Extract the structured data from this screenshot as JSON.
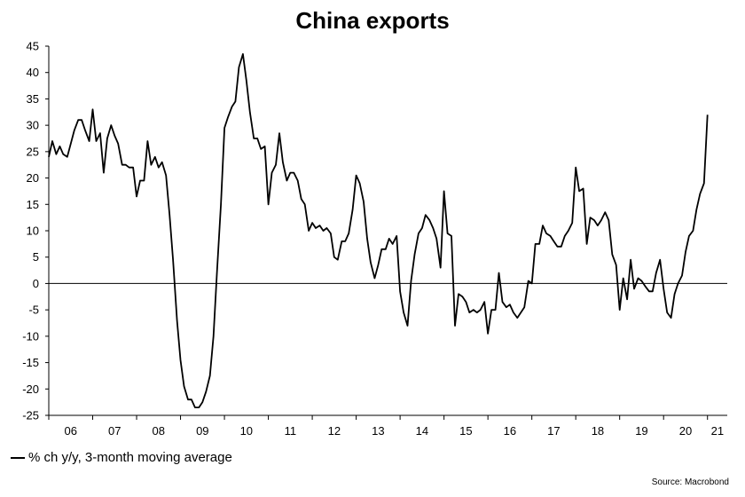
{
  "chart_data": {
    "type": "line",
    "title": "China exports",
    "xlabel": "",
    "ylabel": "",
    "ylim": [
      -25,
      45
    ],
    "yticks": [
      45,
      40,
      35,
      30,
      25,
      20,
      15,
      10,
      5,
      0,
      -5,
      -10,
      -15,
      -20,
      -25
    ],
    "xlim": [
      2006.0,
      2021.45
    ],
    "xtick_labels": [
      "06",
      "07",
      "08",
      "09",
      "10",
      "11",
      "12",
      "13",
      "14",
      "15",
      "16",
      "17",
      "18",
      "19",
      "20",
      "21"
    ],
    "grid": false,
    "legend_position": "bottom-left",
    "series": [
      {
        "name": "% ch y/y, 3-month moving average",
        "color": "#000000",
        "points": [
          [
            2006.0,
            24
          ],
          [
            2006.08,
            27
          ],
          [
            2006.17,
            24.5
          ],
          [
            2006.25,
            26
          ],
          [
            2006.33,
            24.5
          ],
          [
            2006.42,
            24
          ],
          [
            2006.5,
            26.5
          ],
          [
            2006.58,
            29
          ],
          [
            2006.67,
            31
          ],
          [
            2006.75,
            31
          ],
          [
            2006.83,
            29
          ],
          [
            2006.92,
            27
          ],
          [
            2007.0,
            33
          ],
          [
            2007.08,
            27
          ],
          [
            2007.17,
            28.5
          ],
          [
            2007.25,
            21
          ],
          [
            2007.33,
            27.5
          ],
          [
            2007.42,
            30
          ],
          [
            2007.5,
            28
          ],
          [
            2007.58,
            26.5
          ],
          [
            2007.67,
            22.5
          ],
          [
            2007.75,
            22.5
          ],
          [
            2007.83,
            22
          ],
          [
            2007.92,
            22
          ],
          [
            2008.0,
            16.5
          ],
          [
            2008.08,
            19.5
          ],
          [
            2008.17,
            19.5
          ],
          [
            2008.25,
            27
          ],
          [
            2008.33,
            22.5
          ],
          [
            2008.42,
            24
          ],
          [
            2008.5,
            22
          ],
          [
            2008.58,
            23
          ],
          [
            2008.67,
            20.5
          ],
          [
            2008.75,
            13
          ],
          [
            2008.83,
            4.5
          ],
          [
            2008.92,
            -7
          ],
          [
            2009.0,
            -14.5
          ],
          [
            2009.08,
            -19.5
          ],
          [
            2009.17,
            -22
          ],
          [
            2009.25,
            -22
          ],
          [
            2009.33,
            -23.5
          ],
          [
            2009.42,
            -23.5
          ],
          [
            2009.5,
            -22.5
          ],
          [
            2009.58,
            -20.5
          ],
          [
            2009.67,
            -17.5
          ],
          [
            2009.75,
            -10
          ],
          [
            2009.83,
            2
          ],
          [
            2009.92,
            15
          ],
          [
            2010.0,
            29.5
          ],
          [
            2010.08,
            31.5
          ],
          [
            2010.17,
            33.5
          ],
          [
            2010.25,
            34.5
          ],
          [
            2010.33,
            41
          ],
          [
            2010.42,
            43.5
          ],
          [
            2010.5,
            38.5
          ],
          [
            2010.58,
            32.5
          ],
          [
            2010.67,
            27.5
          ],
          [
            2010.75,
            27.5
          ],
          [
            2010.83,
            25.5
          ],
          [
            2010.92,
            26
          ],
          [
            2011.0,
            15
          ],
          [
            2011.08,
            21
          ],
          [
            2011.17,
            22.5
          ],
          [
            2011.25,
            28.5
          ],
          [
            2011.33,
            23
          ],
          [
            2011.42,
            19.5
          ],
          [
            2011.5,
            21
          ],
          [
            2011.58,
            21
          ],
          [
            2011.67,
            19.5
          ],
          [
            2011.75,
            16
          ],
          [
            2011.83,
            15
          ],
          [
            2011.92,
            10
          ],
          [
            2012.0,
            11.5
          ],
          [
            2012.08,
            10.5
          ],
          [
            2012.17,
            11
          ],
          [
            2012.25,
            10
          ],
          [
            2012.33,
            10.5
          ],
          [
            2012.42,
            9.5
          ],
          [
            2012.5,
            5
          ],
          [
            2012.58,
            4.5
          ],
          [
            2012.67,
            8
          ],
          [
            2012.75,
            8
          ],
          [
            2012.83,
            9.5
          ],
          [
            2012.92,
            14
          ],
          [
            2013.0,
            20.5
          ],
          [
            2013.08,
            19
          ],
          [
            2013.17,
            15.5
          ],
          [
            2013.25,
            8.5
          ],
          [
            2013.33,
            4
          ],
          [
            2013.42,
            1
          ],
          [
            2013.5,
            3.5
          ],
          [
            2013.58,
            6.5
          ],
          [
            2013.67,
            6.5
          ],
          [
            2013.75,
            8.5
          ],
          [
            2013.83,
            7.5
          ],
          [
            2013.92,
            9
          ],
          [
            2014.0,
            -1.5
          ],
          [
            2014.08,
            -5.5
          ],
          [
            2014.17,
            -8
          ],
          [
            2014.25,
            0.5
          ],
          [
            2014.33,
            5.5
          ],
          [
            2014.42,
            9.5
          ],
          [
            2014.5,
            10.5
          ],
          [
            2014.58,
            13
          ],
          [
            2014.67,
            12
          ],
          [
            2014.75,
            10.5
          ],
          [
            2014.83,
            8.5
          ],
          [
            2014.92,
            3
          ],
          [
            2015.0,
            17.5
          ],
          [
            2015.08,
            9.5
          ],
          [
            2015.17,
            9
          ],
          [
            2015.25,
            -8
          ],
          [
            2015.33,
            -2
          ],
          [
            2015.42,
            -2.5
          ],
          [
            2015.5,
            -3.5
          ],
          [
            2015.58,
            -5.5
          ],
          [
            2015.67,
            -5
          ],
          [
            2015.75,
            -5.5
          ],
          [
            2015.83,
            -5
          ],
          [
            2015.92,
            -3.5
          ],
          [
            2016.0,
            -9.5
          ],
          [
            2016.08,
            -5
          ],
          [
            2016.17,
            -5
          ],
          [
            2016.25,
            2
          ],
          [
            2016.33,
            -3.5
          ],
          [
            2016.42,
            -4.5
          ],
          [
            2016.5,
            -4
          ],
          [
            2016.58,
            -5.5
          ],
          [
            2016.67,
            -6.5
          ],
          [
            2016.75,
            -5.5
          ],
          [
            2016.83,
            -4.5
          ],
          [
            2016.92,
            0.5
          ],
          [
            2017.0,
            0
          ],
          [
            2017.08,
            7.5
          ],
          [
            2017.17,
            7.5
          ],
          [
            2017.25,
            11
          ],
          [
            2017.33,
            9.5
          ],
          [
            2017.42,
            9
          ],
          [
            2017.5,
            8
          ],
          [
            2017.58,
            7
          ],
          [
            2017.67,
            7
          ],
          [
            2017.75,
            9
          ],
          [
            2017.83,
            10
          ],
          [
            2017.92,
            11.5
          ],
          [
            2018.0,
            22
          ],
          [
            2018.08,
            17.5
          ],
          [
            2018.17,
            18
          ],
          [
            2018.25,
            7.5
          ],
          [
            2018.33,
            12.5
          ],
          [
            2018.42,
            12
          ],
          [
            2018.5,
            11
          ],
          [
            2018.58,
            12
          ],
          [
            2018.67,
            13.5
          ],
          [
            2018.75,
            12
          ],
          [
            2018.83,
            5.5
          ],
          [
            2018.92,
            3.5
          ],
          [
            2019.0,
            -5
          ],
          [
            2019.08,
            1
          ],
          [
            2019.17,
            -3
          ],
          [
            2019.25,
            4.5
          ],
          [
            2019.33,
            -1
          ],
          [
            2019.42,
            1
          ],
          [
            2019.5,
            0.5
          ],
          [
            2019.58,
            -0.5
          ],
          [
            2019.67,
            -1.5
          ],
          [
            2019.75,
            -1.5
          ],
          [
            2019.83,
            2
          ],
          [
            2019.92,
            4.5
          ],
          [
            2020.0,
            -1
          ],
          [
            2020.08,
            -5.5
          ],
          [
            2020.17,
            -6.5
          ],
          [
            2020.25,
            -2
          ],
          [
            2020.33,
            0
          ],
          [
            2020.42,
            1.5
          ],
          [
            2020.5,
            6
          ],
          [
            2020.58,
            9
          ],
          [
            2020.67,
            10
          ],
          [
            2020.75,
            14
          ],
          [
            2020.83,
            17
          ],
          [
            2020.92,
            19
          ],
          [
            2021.0,
            32
          ]
        ]
      }
    ]
  },
  "source": "Source: Macrobond"
}
